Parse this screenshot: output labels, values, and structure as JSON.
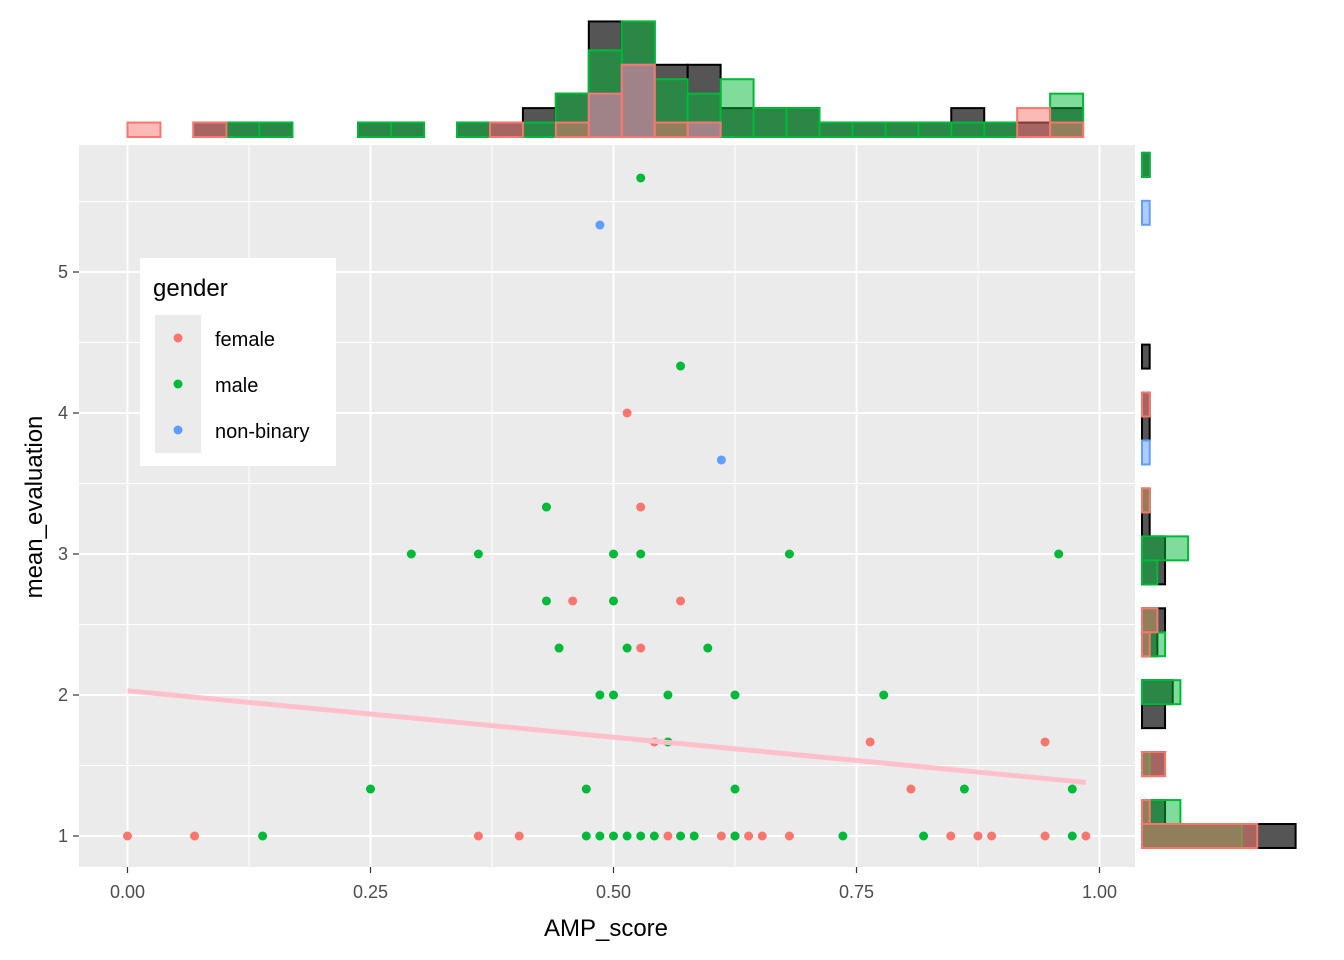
{
  "chart_data": [
    {
      "type": "scatter",
      "title": "",
      "xlabel": "AMP_score",
      "ylabel": "mean_evaluation",
      "xlim": [
        0,
        1
      ],
      "ylim": [
        0.8,
        5.9
      ],
      "x_ticks": [
        "0.00",
        "0.25",
        "0.50",
        "0.75",
        "1.00"
      ],
      "y_ticks": [
        "1",
        "2",
        "3",
        "4",
        "5"
      ],
      "grid": true,
      "legend": {
        "title": "gender",
        "position": "left-inside"
      },
      "colors": {
        "female": "#F8766D",
        "male": "#00BA38",
        "non-binary": "#619CFF",
        "trend": "#FFC0CB"
      },
      "series": [
        {
          "name": "female",
          "points": [
            [
              0.0,
              1
            ],
            [
              0.069,
              1
            ],
            [
              0.361,
              1
            ],
            [
              0.403,
              1
            ],
            [
              0.556,
              1
            ],
            [
              0.611,
              1
            ],
            [
              0.625,
              1
            ],
            [
              0.639,
              1
            ],
            [
              0.653,
              1
            ],
            [
              0.681,
              1
            ],
            [
              0.847,
              1
            ],
            [
              0.875,
              1
            ],
            [
              0.889,
              1
            ],
            [
              0.944,
              1
            ],
            [
              0.986,
              1
            ],
            [
              0.806,
              1.333
            ],
            [
              0.542,
              1.667
            ],
            [
              0.764,
              1.667
            ],
            [
              0.944,
              1.667
            ],
            [
              0.528,
              2.333
            ],
            [
              0.458,
              2.667
            ],
            [
              0.569,
              2.667
            ],
            [
              0.528,
              3.333
            ],
            [
              0.514,
              4
            ]
          ]
        },
        {
          "name": "male",
          "points": [
            [
              0.139,
              1
            ],
            [
              0.472,
              1
            ],
            [
              0.486,
              1
            ],
            [
              0.5,
              1
            ],
            [
              0.514,
              1
            ],
            [
              0.528,
              1
            ],
            [
              0.542,
              1
            ],
            [
              0.569,
              1
            ],
            [
              0.583,
              1
            ],
            [
              0.625,
              1
            ],
            [
              0.736,
              1
            ],
            [
              0.819,
              1
            ],
            [
              0.972,
              1
            ],
            [
              0.25,
              1.333
            ],
            [
              0.472,
              1.333
            ],
            [
              0.625,
              1.333
            ],
            [
              0.861,
              1.333
            ],
            [
              0.972,
              1.333
            ],
            [
              0.556,
              1.667
            ],
            [
              0.486,
              2
            ],
            [
              0.5,
              2
            ],
            [
              0.556,
              2
            ],
            [
              0.625,
              2
            ],
            [
              0.778,
              2
            ],
            [
              0.444,
              2.333
            ],
            [
              0.514,
              2.333
            ],
            [
              0.597,
              2.333
            ],
            [
              0.431,
              2.667
            ],
            [
              0.5,
              2.667
            ],
            [
              0.292,
              3
            ],
            [
              0.361,
              3
            ],
            [
              0.5,
              3
            ],
            [
              0.528,
              3
            ],
            [
              0.681,
              3
            ],
            [
              0.958,
              3
            ],
            [
              0.431,
              3.333
            ],
            [
              0.569,
              4.333
            ],
            [
              0.528,
              5.667
            ]
          ]
        },
        {
          "name": "non-binary",
          "points": [
            [
              0.611,
              3.667
            ],
            [
              0.486,
              5.333
            ]
          ]
        }
      ],
      "trend_line": {
        "x": [
          0.0,
          0.986
        ],
        "y": [
          2.03,
          1.38
        ]
      }
    },
    {
      "type": "bar",
      "title": "",
      "xlabel": "",
      "ylabel": "",
      "ylim": [
        0,
        9
      ],
      "bin_edges": [
        0.0,
        0.0339,
        0.0678,
        0.1017,
        0.1356,
        0.1695,
        0.2034,
        0.2373,
        0.2712,
        0.3051,
        0.339,
        0.3729,
        0.4068,
        0.4407,
        0.4746,
        0.5085,
        0.5424,
        0.5763,
        0.6102,
        0.6441,
        0.678,
        0.7119,
        0.7458,
        0.7797,
        0.8136,
        0.8475,
        0.8814,
        0.9153,
        0.9492,
        0.9831
      ],
      "series": [
        {
          "name": "all",
          "values": [
            0,
            0,
            1,
            1,
            1,
            0,
            0,
            1,
            1,
            0,
            1,
            1,
            2,
            3,
            8,
            8,
            5,
            5,
            2,
            2,
            2,
            1,
            1,
            1,
            1,
            2,
            1,
            1,
            2
          ]
        },
        {
          "name": "male",
          "values": [
            0,
            0,
            0,
            1,
            1,
            0,
            0,
            1,
            1,
            0,
            1,
            0,
            1,
            3,
            6,
            8,
            4,
            3,
            4,
            2,
            2,
            1,
            1,
            1,
            1,
            1,
            1,
            0,
            3
          ]
        },
        {
          "name": "non-binary",
          "values": [
            0,
            0,
            0,
            0,
            0,
            0,
            0,
            0,
            0,
            0,
            0,
            0,
            0,
            0,
            3,
            5,
            0,
            1,
            0,
            0,
            0,
            0,
            0,
            0,
            0,
            0,
            0,
            0,
            0
          ]
        },
        {
          "name": "female",
          "values": [
            1,
            0,
            1,
            0,
            0,
            0,
            0,
            0,
            0,
            0,
            0,
            1,
            0,
            1,
            3,
            5,
            1,
            1,
            0,
            0,
            0,
            0,
            0,
            0,
            0,
            0,
            0,
            2,
            1
          ]
        }
      ]
    },
    {
      "type": "bar",
      "title": "",
      "xlabel": "",
      "ylabel": "",
      "xlim": [
        0,
        25
      ],
      "bin_edges": [
        0.915,
        1.085,
        1.255,
        1.425,
        1.595,
        1.765,
        1.935,
        2.105,
        2.275,
        2.445,
        2.615,
        2.785,
        2.955,
        3.125,
        3.295,
        3.465,
        3.635,
        3.805,
        3.975,
        4.145,
        4.315,
        4.485,
        4.655,
        4.825,
        4.995,
        5.165,
        5.335,
        5.505,
        5.675,
        5.845
      ],
      "series": [
        {
          "name": "all",
          "values": [
            20,
            3,
            0,
            3,
            0,
            3,
            4,
            0,
            2,
            3,
            0,
            3,
            3,
            1,
            1,
            0,
            0,
            1,
            1,
            0,
            1,
            0,
            0,
            0,
            0,
            0,
            0,
            0,
            1
          ]
        },
        {
          "name": "male",
          "values": [
            13,
            5,
            0,
            1,
            0,
            0,
            5,
            0,
            3,
            2,
            0,
            2,
            6,
            0,
            1,
            0,
            0,
            0,
            0,
            0,
            0,
            0,
            0,
            0,
            0,
            0,
            0,
            0,
            1
          ]
        },
        {
          "name": "non-binary",
          "values": [
            0,
            0,
            0,
            0,
            0,
            0,
            0,
            0,
            0,
            0,
            0,
            0,
            0,
            0,
            0,
            0,
            1,
            0,
            0,
            0,
            0,
            0,
            0,
            0,
            0,
            0,
            1,
            0,
            0
          ]
        },
        {
          "name": "female",
          "values": [
            15,
            1,
            0,
            3,
            0,
            0,
            0,
            0,
            1,
            2,
            0,
            0,
            0,
            0,
            1,
            0,
            0,
            0,
            1,
            0,
            0,
            0,
            0,
            0,
            0,
            0,
            0,
            0,
            0
          ]
        }
      ]
    }
  ]
}
